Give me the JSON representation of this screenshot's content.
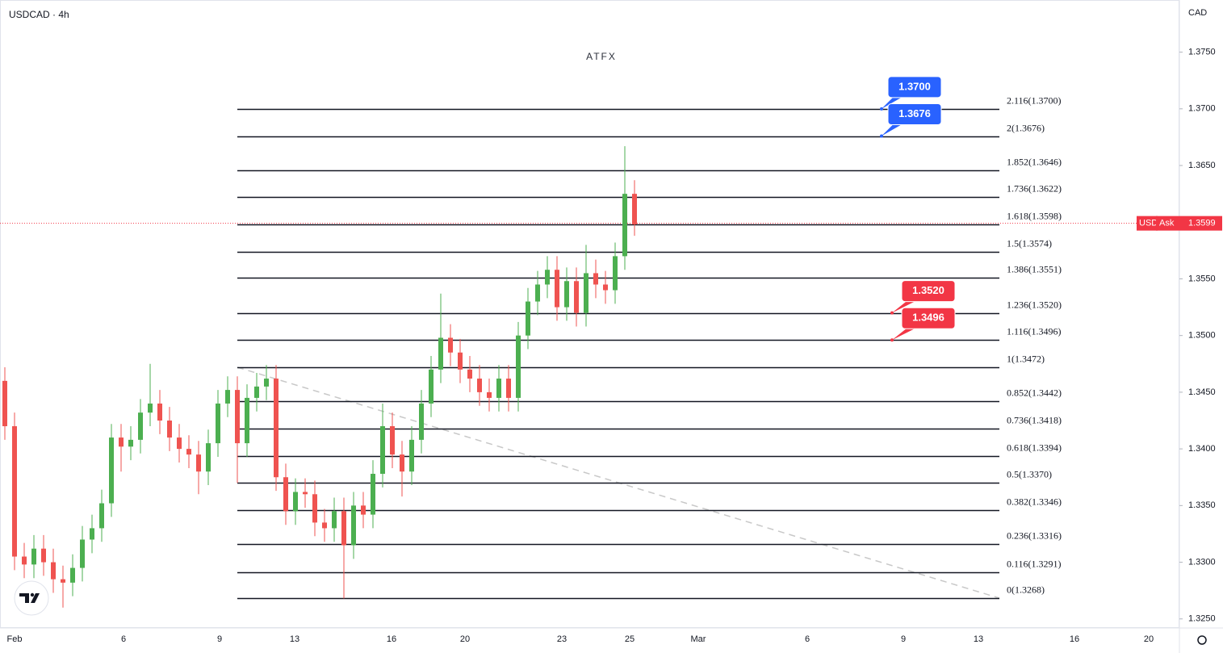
{
  "chart_data": {
    "type": "candlestick",
    "title": "USDCAD · 4h",
    "watermark": "ATFX",
    "currency": "CAD",
    "x_labels": [
      "Feb",
      "6",
      "9",
      "13",
      "16",
      "20",
      "23",
      "25",
      "Mar",
      "6",
      "9",
      "13",
      "16",
      "20"
    ],
    "up_color": "#4caf50",
    "down_color": "#ef5350",
    "open": [
      1.346,
      1.342,
      1.3305,
      1.3298,
      1.3312,
      1.33,
      1.3285,
      1.3282,
      1.3295,
      1.332,
      1.333,
      1.3352,
      1.341,
      1.3402,
      1.3408,
      1.3432,
      1.344,
      1.3425,
      1.341,
      1.34,
      1.3395,
      1.338,
      1.3405,
      1.344,
      1.3452,
      1.3405,
      1.3445,
      1.3455,
      1.3462,
      1.3375,
      1.3345,
      1.3362,
      1.336,
      1.3335,
      1.333,
      1.3345,
      1.3315,
      1.335,
      1.3342,
      1.3378,
      1.342,
      1.3395,
      1.338,
      1.3408,
      1.344,
      1.347,
      1.3498,
      1.3485,
      1.347,
      1.3462,
      1.345,
      1.3445,
      1.3462,
      1.3445,
      1.35,
      1.353,
      1.3545,
      1.3558,
      1.3525,
      1.3548,
      1.352,
      1.3555,
      1.3545,
      1.354,
      1.357,
      1.3625
    ],
    "high": [
      1.3472,
      1.3432,
      1.3317,
      1.3324,
      1.3324,
      1.3312,
      1.3297,
      1.3307,
      1.3332,
      1.3342,
      1.3364,
      1.3422,
      1.3422,
      1.342,
      1.3444,
      1.3475,
      1.3452,
      1.3437,
      1.3422,
      1.3412,
      1.3407,
      1.3417,
      1.3452,
      1.3464,
      1.3464,
      1.3457,
      1.3467,
      1.3474,
      1.3474,
      1.3387,
      1.3374,
      1.3374,
      1.3372,
      1.3347,
      1.3357,
      1.3357,
      1.3362,
      1.3362,
      1.339,
      1.344,
      1.3432,
      1.3407,
      1.342,
      1.3452,
      1.3482,
      1.3537,
      1.351,
      1.3497,
      1.3482,
      1.3474,
      1.3462,
      1.3474,
      1.3474,
      1.3512,
      1.3542,
      1.3557,
      1.357,
      1.357,
      1.356,
      1.356,
      1.358,
      1.3567,
      1.3557,
      1.3582,
      1.3667,
      1.3637
    ],
    "low": [
      1.3408,
      1.3293,
      1.3286,
      1.3286,
      1.3288,
      1.3273,
      1.326,
      1.327,
      1.3283,
      1.3308,
      1.3318,
      1.334,
      1.338,
      1.339,
      1.3396,
      1.342,
      1.3413,
      1.3398,
      1.3388,
      1.3383,
      1.336,
      1.3368,
      1.3393,
      1.3428,
      1.337,
      1.3393,
      1.3433,
      1.3443,
      1.3363,
      1.3333,
      1.3333,
      1.3348,
      1.3323,
      1.3318,
      1.3318,
      1.3268,
      1.3303,
      1.333,
      1.333,
      1.3366,
      1.3383,
      1.3358,
      1.3368,
      1.3396,
      1.3428,
      1.3458,
      1.3473,
      1.3458,
      1.345,
      1.3438,
      1.3433,
      1.3433,
      1.3433,
      1.3433,
      1.3488,
      1.3518,
      1.3533,
      1.3513,
      1.3513,
      1.3508,
      1.3508,
      1.3533,
      1.3528,
      1.3528,
      1.3558,
      1.3588
    ],
    "close": [
      1.342,
      1.3305,
      1.3298,
      1.3312,
      1.33,
      1.3285,
      1.3282,
      1.3295,
      1.332,
      1.333,
      1.3352,
      1.341,
      1.3402,
      1.3408,
      1.3432,
      1.344,
      1.3425,
      1.341,
      1.34,
      1.3395,
      1.338,
      1.3405,
      1.344,
      1.3452,
      1.3405,
      1.3445,
      1.3455,
      1.3462,
      1.3375,
      1.3345,
      1.3362,
      1.336,
      1.3335,
      1.333,
      1.3345,
      1.3315,
      1.335,
      1.3342,
      1.3378,
      1.342,
      1.3395,
      1.338,
      1.3408,
      1.344,
      1.347,
      1.3498,
      1.3485,
      1.347,
      1.3462,
      1.345,
      1.3445,
      1.3462,
      1.3445,
      1.35,
      1.353,
      1.3545,
      1.3558,
      1.3525,
      1.3548,
      1.352,
      1.3555,
      1.3545,
      1.354,
      1.357,
      1.3625,
      1.3598
    ],
    "ylim": [
      1.3242,
      1.3796
    ],
    "yticks": [
      {
        "value": 1.375,
        "label": "1.3750"
      },
      {
        "value": 1.37,
        "label": "1.3700"
      },
      {
        "value": 1.365,
        "label": "1.3650"
      },
      {
        "value": 1.36,
        "label": "1.3600"
      },
      {
        "value": 1.355,
        "label": "1.3550"
      },
      {
        "value": 1.35,
        "label": "1.3500"
      },
      {
        "value": 1.345,
        "label": "1.3450"
      },
      {
        "value": 1.34,
        "label": "1.3400"
      },
      {
        "value": 1.335,
        "label": "1.3350"
      },
      {
        "value": 1.33,
        "label": "1.3300"
      },
      {
        "value": 1.325,
        "label": "1.3250"
      }
    ],
    "fib_levels": [
      {
        "label": "2.116(1.3700)",
        "value": 1.37
      },
      {
        "label": "2(1.3676)",
        "value": 1.3676
      },
      {
        "label": "1.852(1.3646)",
        "value": 1.3646
      },
      {
        "label": "1.736(1.3622)",
        "value": 1.3622
      },
      {
        "label": "1.618(1.3598)",
        "value": 1.3598
      },
      {
        "label": "1.5(1.3574)",
        "value": 1.3574
      },
      {
        "label": "1.386(1.3551)",
        "value": 1.3551
      },
      {
        "label": "1.236(1.3520)",
        "value": 1.352
      },
      {
        "label": "1.116(1.3496)",
        "value": 1.3496
      },
      {
        "label": "1(1.3472)",
        "value": 1.3472
      },
      {
        "label": "0.852(1.3442)",
        "value": 1.3442
      },
      {
        "label": "0.736(1.3418)",
        "value": 1.3418
      },
      {
        "label": "0.618(1.3394)",
        "value": 1.3394
      },
      {
        "label": "0.5(1.3370)",
        "value": 1.337
      },
      {
        "label": "0.382(1.3346)",
        "value": 1.3346
      },
      {
        "label": "0.236(1.3316)",
        "value": 1.3316
      },
      {
        "label": "0.116(1.3291)",
        "value": 1.3291
      },
      {
        "label": "0(1.3268)",
        "value": 1.3268
      }
    ],
    "tags": [
      {
        "label": "1.3700",
        "value": 1.37,
        "color": "#2962ff"
      },
      {
        "label": "1.3676",
        "value": 1.3676,
        "color": "#2962ff"
      },
      {
        "label": "1.3520",
        "value": 1.352,
        "color": "#f23645"
      },
      {
        "label": "1.3496",
        "value": 1.3496,
        "color": "#f23645"
      }
    ],
    "price": {
      "symbol": "USD",
      "side": "Ask",
      "label": "1.3599",
      "value": 1.3599,
      "color": "#f23645"
    }
  }
}
